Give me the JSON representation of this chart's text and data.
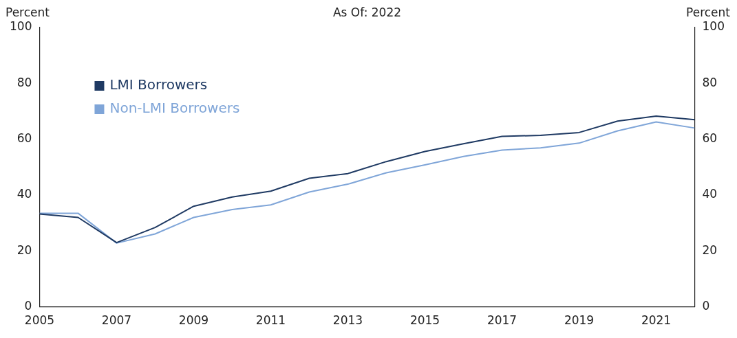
{
  "chart_data": {
    "type": "line",
    "title": "As Of: 2022",
    "ylabel": "Percent",
    "y2label": "Percent",
    "x": [
      2005,
      2006,
      2007,
      2008,
      2009,
      2010,
      2011,
      2012,
      2013,
      2014,
      2015,
      2016,
      2017,
      2018,
      2019,
      2020,
      2021,
      2022
    ],
    "series": [
      {
        "name": "LMI Borrowers",
        "color": "#1f3a63",
        "values": [
          33.2,
          32,
          23,
          28.4,
          36,
          39.3,
          41.4,
          46,
          47.7,
          52,
          55.6,
          58.4,
          61,
          61.4,
          62.4,
          66.5,
          68.3,
          67
        ]
      },
      {
        "name": "Non-LMI Borrowers",
        "color": "#7fa5d8",
        "values": [
          33.5,
          33.5,
          22.8,
          26.1,
          32,
          34.8,
          36.5,
          41.1,
          43.9,
          48,
          50.8,
          53.8,
          56.1,
          56.9,
          58.6,
          63,
          66.2,
          64
        ]
      }
    ],
    "xlim": [
      2005,
      2022
    ],
    "xticks": [
      2005,
      2007,
      2009,
      2011,
      2013,
      2015,
      2017,
      2019,
      2021
    ],
    "ylim": [
      0,
      100
    ],
    "yticks": [
      0,
      20,
      40,
      60,
      80,
      100
    ],
    "y2lim": [
      0,
      100
    ],
    "y2ticks": [
      0,
      20,
      40,
      60,
      80,
      100
    ],
    "legend": "top left",
    "grid": false,
    "marker": "none",
    "line_style": "solid"
  }
}
